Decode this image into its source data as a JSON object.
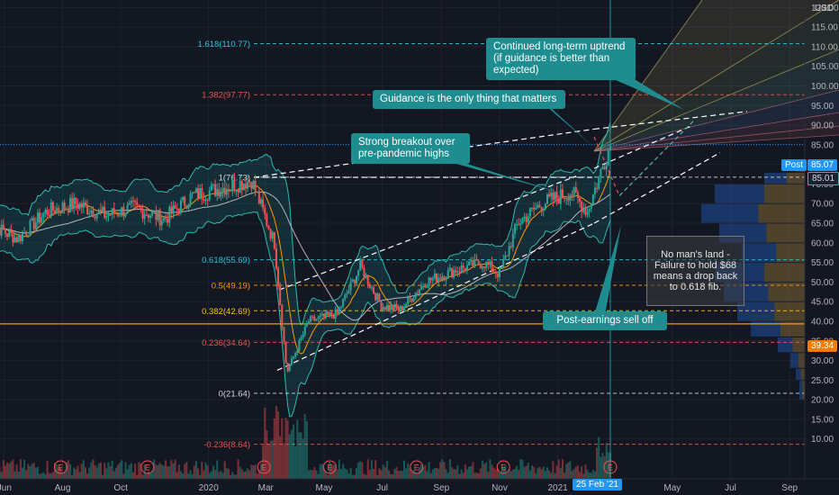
{
  "currency_label": "USD",
  "colors": {
    "background": "#131722",
    "up_candle": "#26a69a",
    "down_candle": "#ef5350",
    "bollinger": "#2bbbad",
    "callout": "#1f8c90",
    "horizontal_level": "#ff9800",
    "fib_positive": "#26c6da",
    "fib_negative": "#ef5350",
    "fib_mid": "#ff9800",
    "fib_382": "#ffc107"
  },
  "annotations": {
    "continued_uptrend": "Continued long-term uptrend (if guidance is better than expected)",
    "guidance": "Guidance is the only thing that matters",
    "breakout": "Strong breakout over pre-pandemic highs",
    "sell_off": "Post-earnings sell off",
    "no_mans_land": "No man's land - Failure to hold $68 means a drop back to 0.618 fib."
  },
  "price_badges": {
    "post_label": "Post",
    "post_value": "85.07",
    "last_value": "85.01",
    "level_value": "39.34"
  },
  "crosshair_date": "25 Feb '21",
  "chart_data": {
    "type": "candlestick",
    "y_axis": {
      "side": "right",
      "ylim": [
        7,
        127
      ],
      "ticks": [
        10,
        15,
        20,
        25,
        30,
        35,
        40,
        45,
        50,
        55,
        60,
        65,
        70,
        75,
        80,
        85,
        90,
        95,
        100,
        105,
        110,
        115,
        120
      ],
      "tick_labels": [
        "10.00",
        "15.00",
        "20.00",
        "25.00",
        "30.00",
        "35.00",
        "40.00",
        "45.00",
        "50.00",
        "55.00",
        "60.00",
        "65.00",
        "70.00",
        "75.00",
        "80.00",
        "85.00",
        "90.00",
        "95.00",
        "100.00",
        "105.00",
        "110.00",
        "115.00",
        "120.00"
      ]
    },
    "x_axis": {
      "tick_labels": [
        "Jun",
        "Aug",
        "Oct",
        "2020",
        "Mar",
        "May",
        "Jul",
        "Sep",
        "Nov",
        "2021",
        "May",
        "Jul",
        "Sep"
      ],
      "tick_dates": [
        "2019-06-01",
        "2019-08-01",
        "2019-10-01",
        "2020-01-01",
        "2020-03-01",
        "2020-05-01",
        "2020-07-01",
        "2020-09-01",
        "2020-11-01",
        "2021-01-01",
        "2021-05-01",
        "2021-07-01",
        "2021-09-01"
      ]
    },
    "price_path": [
      {
        "date": "2019-05-15",
        "close": 65
      },
      {
        "date": "2019-06-15",
        "close": 61
      },
      {
        "date": "2019-07-15",
        "close": 68
      },
      {
        "date": "2019-08-15",
        "close": 70
      },
      {
        "date": "2019-09-15",
        "close": 67
      },
      {
        "date": "2019-10-15",
        "close": 69
      },
      {
        "date": "2019-11-15",
        "close": 66
      },
      {
        "date": "2019-12-15",
        "close": 72
      },
      {
        "date": "2020-01-15",
        "close": 74
      },
      {
        "date": "2020-02-15",
        "close": 76
      },
      {
        "date": "2020-03-10",
        "close": 60
      },
      {
        "date": "2020-03-23",
        "close": 27
      },
      {
        "date": "2020-04-15",
        "close": 40
      },
      {
        "date": "2020-05-15",
        "close": 42
      },
      {
        "date": "2020-06-08",
        "close": 54
      },
      {
        "date": "2020-06-30",
        "close": 44
      },
      {
        "date": "2020-07-20",
        "close": 43
      },
      {
        "date": "2020-08-15",
        "close": 50
      },
      {
        "date": "2020-09-15",
        "close": 53
      },
      {
        "date": "2020-10-15",
        "close": 55
      },
      {
        "date": "2020-11-01",
        "close": 52
      },
      {
        "date": "2020-11-20",
        "close": 65
      },
      {
        "date": "2020-12-15",
        "close": 70
      },
      {
        "date": "2021-01-15",
        "close": 73
      },
      {
        "date": "2021-02-01",
        "close": 68
      },
      {
        "date": "2021-02-15",
        "close": 78
      },
      {
        "date": "2021-02-25",
        "close": 85
      }
    ],
    "fib_levels": [
      {
        "label": "1.618(110.77)",
        "value": 110.77,
        "color": "#26c6da"
      },
      {
        "label": "1.382(97.77)",
        "value": 97.77,
        "color": "#ef5350"
      },
      {
        "label": "1(76.73)",
        "value": 76.73,
        "color": "#d1d4dc"
      },
      {
        "label": "0.618(55.69)",
        "value": 55.69,
        "color": "#26c6da"
      },
      {
        "label": "0.5(49.19)",
        "value": 49.19,
        "color": "#ff9800"
      },
      {
        "label": "0.382(42.69)",
        "value": 42.69,
        "color": "#ffc107"
      },
      {
        "label": "0.236(34.64)",
        "value": 34.64,
        "color": "#ef5350"
      },
      {
        "label": "0(21.64)",
        "value": 21.64,
        "color": "#d1d4dc"
      },
      {
        "label": "-0.236(8.64)",
        "value": 8.64,
        "color": "#ef5350"
      }
    ],
    "earnings_markers": {
      "label": "E",
      "dates": [
        "2019-07-30",
        "2019-10-29",
        "2020-02-28",
        "2020-05-07",
        "2020-08-06",
        "2020-11-05",
        "2021-02-25"
      ]
    },
    "horizontal_level": 39.34
  }
}
